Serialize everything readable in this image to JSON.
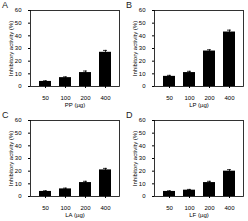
{
  "chart_data": [
    {
      "type": "bar",
      "title": "A",
      "categories": [
        "50",
        "100",
        "200",
        "400"
      ],
      "values": [
        4,
        7,
        11,
        27
      ],
      "errors": [
        0.5,
        0.6,
        1.2,
        1.5
      ],
      "color": "#000000",
      "xlabel": "PP (µg)",
      "ylabel": "Inhibitory activity (%)",
      "ylim": [
        0,
        60
      ],
      "yticks": [
        0,
        10,
        20,
        30,
        40,
        50,
        60
      ]
    },
    {
      "type": "bar",
      "title": "B",
      "categories": [
        "50",
        "100",
        "200",
        "400"
      ],
      "values": [
        8,
        11,
        28,
        43
      ],
      "errors": [
        0.8,
        1,
        1,
        1.5
      ],
      "color": "#000000",
      "xlabel": "LP (µg)",
      "ylabel": "Inhibitory activity (%)",
      "ylim": [
        0,
        60
      ],
      "yticks": [
        0,
        10,
        20,
        30,
        40,
        50,
        60
      ]
    },
    {
      "type": "bar",
      "title": "C",
      "categories": [
        "50",
        "100",
        "200",
        "400"
      ],
      "values": [
        4,
        6,
        11,
        21
      ],
      "errors": [
        0.5,
        0.6,
        1,
        1.2
      ],
      "color": "#000000",
      "xlabel": "LA (µg)",
      "ylabel": "Inhibitory activity (%)",
      "ylim": [
        0,
        60
      ],
      "yticks": [
        0,
        10,
        20,
        30,
        40,
        50,
        60
      ]
    },
    {
      "type": "bar",
      "title": "D",
      "categories": [
        "50",
        "100",
        "200",
        "400"
      ],
      "values": [
        4,
        5,
        11,
        20
      ],
      "errors": [
        0.5,
        0.6,
        1,
        1.2
      ],
      "color": "#000000",
      "xlabel": "LF (µg)",
      "ylabel": "Inhibitory activity (%)",
      "ylim": [
        0,
        60
      ],
      "yticks": [
        0,
        10,
        20,
        30,
        40,
        50,
        60
      ]
    }
  ]
}
